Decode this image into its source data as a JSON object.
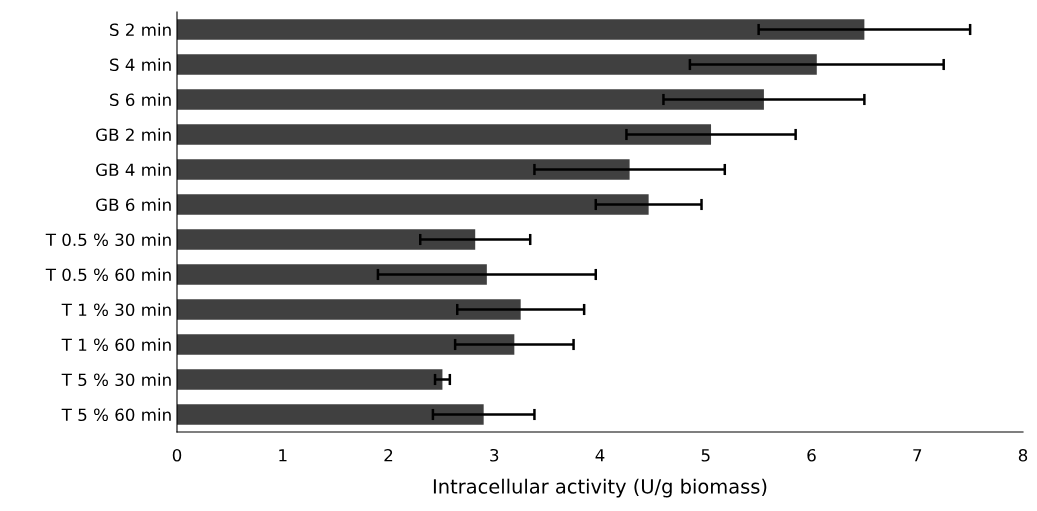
{
  "chart_data": {
    "type": "bar",
    "orientation": "horizontal",
    "xlabel": "Intracellular activity (U/g biomass)",
    "categories": [
      "S 2 min",
      "S 4 min",
      "S 6 min",
      "GB 2 min",
      "GB 4 min",
      "GB 6 min",
      "T 0.5 % 30 min",
      "T 0.5 % 60 min",
      "T 1 % 30 min",
      "T 1 % 60 min",
      "T 5 % 30 min",
      "T 5 % 60 min"
    ],
    "values": [
      6.5,
      6.05,
      5.55,
      5.05,
      4.28,
      4.46,
      2.82,
      2.93,
      3.25,
      3.19,
      2.51,
      2.9
    ],
    "errors": [
      1.0,
      1.2,
      0.95,
      0.8,
      0.9,
      0.5,
      0.52,
      1.03,
      0.6,
      0.56,
      0.07,
      0.48
    ],
    "color": "#404040",
    "xlim": [
      0,
      8
    ],
    "xticks": [
      0,
      1,
      2,
      3,
      4,
      5,
      6,
      7,
      8
    ],
    "grid": false
  }
}
